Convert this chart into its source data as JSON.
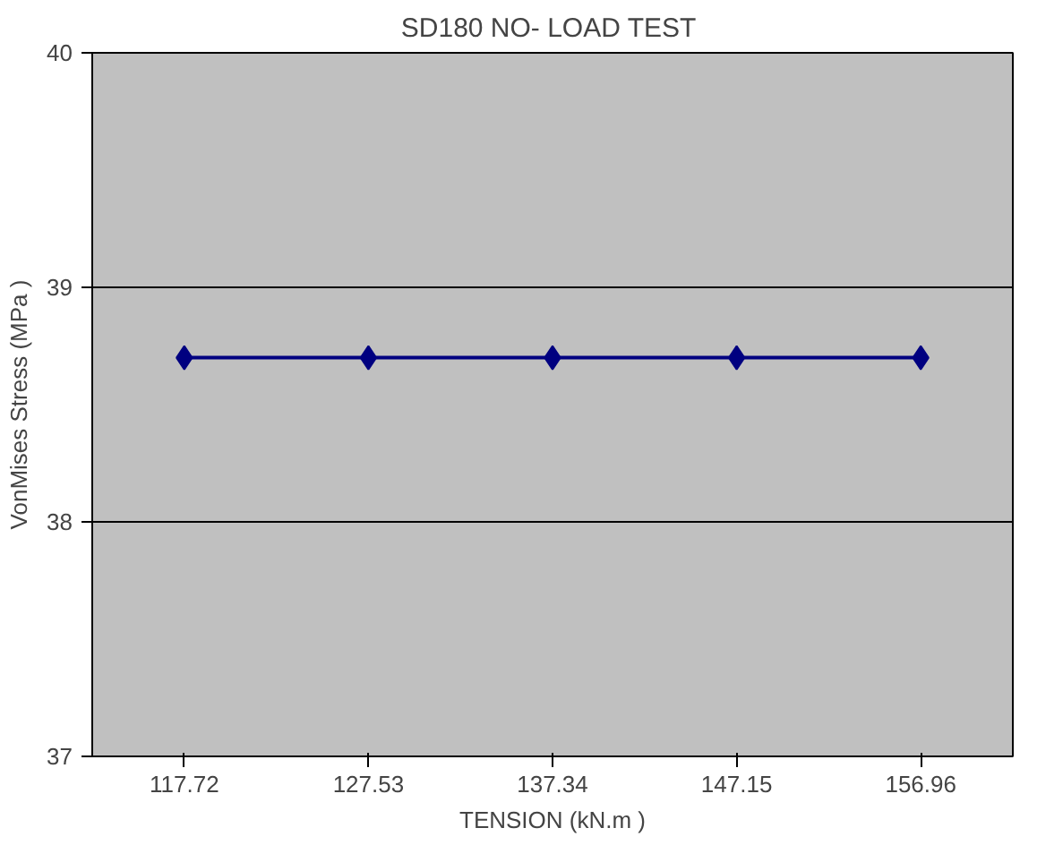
{
  "chart_data": {
    "type": "line",
    "title": "SD180  NO- LOAD TEST",
    "xlabel": "TENSION (kN.m )",
    "ylabel": "VonMises Stress (MPa )",
    "categories": [
      "117.72",
      "127.53",
      "137.34",
      "147.15",
      "156.96"
    ],
    "series": [
      {
        "color": "#000080",
        "values": [
          38.7,
          38.7,
          38.7,
          38.7,
          38.7
        ]
      }
    ],
    "ylim": [
      37,
      40
    ],
    "yticks": [
      37,
      38,
      39,
      40
    ],
    "grid": "y",
    "marker": "diamond",
    "line_style": "solid"
  }
}
